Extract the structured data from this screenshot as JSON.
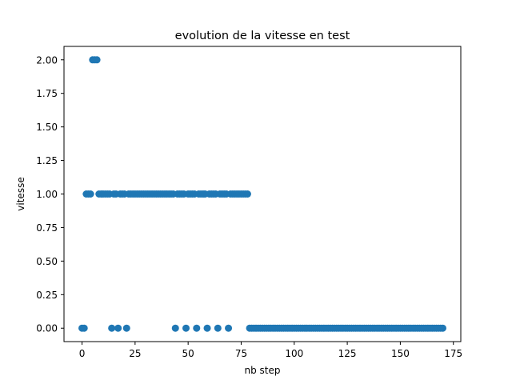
{
  "chart_data": {
    "type": "scatter",
    "title": "evolution de la vitesse en test",
    "xlabel": "nb step",
    "ylabel": "vitesse",
    "xlim": [
      -8.5,
      178.5
    ],
    "ylim": [
      -0.1,
      2.1
    ],
    "xticks": [
      0,
      25,
      50,
      75,
      100,
      125,
      150,
      175
    ],
    "yticks": [
      0.0,
      0.25,
      0.5,
      0.75,
      1.0,
      1.25,
      1.5,
      1.75,
      2.0
    ],
    "ytick_labels": [
      "0.00",
      "0.25",
      "0.50",
      "0.75",
      "1.00",
      "1.25",
      "1.50",
      "1.75",
      "2.00"
    ],
    "grid": false,
    "marker_color": "#1f77b4",
    "series": [
      {
        "x": [
          0,
          1,
          2,
          3,
          4,
          5,
          6,
          7,
          8,
          9,
          10,
          11,
          12,
          13,
          14,
          15,
          16,
          17,
          18,
          19,
          20,
          21,
          22,
          23,
          24,
          25,
          26,
          27,
          28,
          29,
          30,
          31,
          32,
          33,
          34,
          35,
          36,
          37,
          38,
          39,
          40,
          41,
          42,
          43,
          44,
          45,
          46,
          47,
          48,
          49,
          50,
          51,
          52,
          53,
          54,
          55,
          56,
          57,
          58,
          59,
          60,
          61,
          62,
          63,
          64,
          65,
          66,
          67,
          68,
          69,
          70,
          71,
          72,
          73,
          74,
          75,
          76,
          77,
          78,
          79,
          80,
          81,
          82,
          83,
          84,
          85,
          86,
          87,
          88,
          89,
          90,
          91,
          92,
          93,
          94,
          95,
          96,
          97,
          98,
          99,
          100,
          101,
          102,
          103,
          104,
          105,
          106,
          107,
          108,
          109,
          110,
          111,
          112,
          113,
          114,
          115,
          116,
          117,
          118,
          119,
          120,
          121,
          122,
          123,
          124,
          125,
          126,
          127,
          128,
          129,
          130,
          131,
          132,
          133,
          134,
          135,
          136,
          137,
          138,
          139,
          140,
          141,
          142,
          143,
          144,
          145,
          146,
          147,
          148,
          149,
          150,
          151,
          152,
          153,
          154,
          155,
          156,
          157,
          158,
          159,
          160,
          161,
          162,
          163,
          164,
          165,
          166,
          167,
          168,
          169,
          170
        ],
        "y": [
          0,
          0,
          1,
          1,
          1,
          2,
          2,
          2,
          1,
          1,
          1,
          1,
          1,
          1,
          0,
          1,
          1,
          0,
          1,
          1,
          1,
          0,
          1,
          1,
          1,
          1,
          1,
          1,
          1,
          1,
          1,
          1,
          1,
          1,
          1,
          1,
          1,
          1,
          1,
          1,
          1,
          1,
          1,
          1,
          0,
          1,
          1,
          1,
          1,
          0,
          1,
          1,
          1,
          1,
          0,
          1,
          1,
          1,
          1,
          0,
          1,
          1,
          1,
          1,
          0,
          1,
          1,
          1,
          1,
          0,
          1,
          1,
          1,
          1,
          1,
          1,
          1,
          1,
          1,
          0,
          0,
          0,
          0,
          0,
          0,
          0,
          0,
          0,
          0,
          0,
          0,
          0,
          0,
          0,
          0,
          0,
          0,
          0,
          0,
          0,
          0,
          0,
          0,
          0,
          0,
          0,
          0,
          0,
          0,
          0,
          0,
          0,
          0,
          0,
          0,
          0,
          0,
          0,
          0,
          0,
          0,
          0,
          0,
          0,
          0,
          0,
          0,
          0,
          0,
          0,
          0,
          0,
          0,
          0,
          0,
          0,
          0,
          0,
          0,
          0,
          0,
          0,
          0,
          0,
          0,
          0,
          0,
          0,
          0,
          0,
          0,
          0,
          0,
          0,
          0,
          0,
          0,
          0,
          0,
          0,
          0,
          0,
          0,
          0,
          0,
          0,
          0,
          0,
          0,
          0,
          0
        ]
      }
    ]
  }
}
